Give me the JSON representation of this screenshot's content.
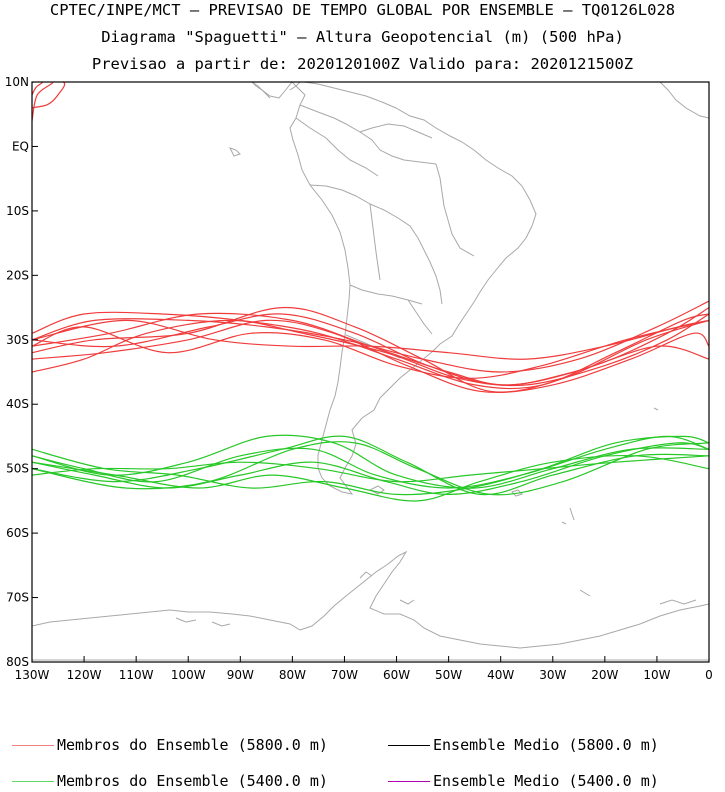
{
  "header": {
    "line1": "CPTEC/INPE/MCT — PREVISAO DE TEMPO GLOBAL POR ENSEMBLE — TQ0126L028",
    "line2": "Diagrama \"Spaguetti\" — Altura Geopotencial (m) (500 hPa)",
    "line3": "Previsao a partir de: 2020120100Z  Valido para: 2020121500Z"
  },
  "map": {
    "lat_range": [
      -80,
      10
    ],
    "lon_range": [
      -130,
      0
    ],
    "lat_ticks": [
      {
        "lat": 10,
        "label": "10N"
      },
      {
        "lat": 0,
        "label": "EQ"
      },
      {
        "lat": -10,
        "label": "10S"
      },
      {
        "lat": -20,
        "label": "20S"
      },
      {
        "lat": -30,
        "label": "30S"
      },
      {
        "lat": -40,
        "label": "40S"
      },
      {
        "lat": -50,
        "label": "50S"
      },
      {
        "lat": -60,
        "label": "60S"
      },
      {
        "lat": -70,
        "label": "70S"
      },
      {
        "lat": -80,
        "label": "80S"
      }
    ],
    "lon_ticks": [
      {
        "lon": -130,
        "label": "130W"
      },
      {
        "lon": -120,
        "label": "120W"
      },
      {
        "lon": -110,
        "label": "110W"
      },
      {
        "lon": -100,
        "label": "100W"
      },
      {
        "lon": -90,
        "label": "90W"
      },
      {
        "lon": -80,
        "label": "80W"
      },
      {
        "lon": -70,
        "label": "70W"
      },
      {
        "lon": -60,
        "label": "60W"
      },
      {
        "lon": -50,
        "label": "50W"
      },
      {
        "lon": -40,
        "label": "40W"
      },
      {
        "lon": -30,
        "label": "30W"
      },
      {
        "lon": -20,
        "label": "20W"
      },
      {
        "lon": -10,
        "label": "10W"
      },
      {
        "lon": 0,
        "label": "0"
      }
    ],
    "coast_color": "#a8a8a8",
    "contour_5800": {
      "color": "#f03c3c",
      "members": [
        [
          [
            -130,
            -30
          ],
          [
            -118,
            -27
          ],
          [
            -100,
            -27
          ],
          [
            -85,
            -28
          ],
          [
            -70,
            -30
          ],
          [
            -55,
            -33
          ],
          [
            -40,
            -35
          ],
          [
            -25,
            -33
          ],
          [
            -10,
            -28
          ],
          [
            0,
            -24
          ]
        ],
        [
          [
            -130,
            -31
          ],
          [
            -115,
            -29
          ],
          [
            -98,
            -26
          ],
          [
            -80,
            -27
          ],
          [
            -65,
            -31
          ],
          [
            -50,
            -35
          ],
          [
            -38,
            -37
          ],
          [
            -22,
            -34
          ],
          [
            -8,
            -29
          ],
          [
            0,
            -25
          ]
        ],
        [
          [
            -130,
            -29
          ],
          [
            -120,
            -26
          ],
          [
            -105,
            -26
          ],
          [
            -90,
            -27
          ],
          [
            -75,
            -29
          ],
          [
            -60,
            -33
          ],
          [
            -45,
            -37
          ],
          [
            -32,
            -37
          ],
          [
            -18,
            -32
          ],
          [
            -5,
            -27
          ],
          [
            0,
            -26
          ]
        ],
        [
          [
            -130,
            -32
          ],
          [
            -118,
            -30
          ],
          [
            -100,
            -29
          ],
          [
            -82,
            -25
          ],
          [
            -68,
            -28
          ],
          [
            -55,
            -33
          ],
          [
            -42,
            -38
          ],
          [
            -28,
            -36
          ],
          [
            -12,
            -30
          ],
          [
            0,
            -27
          ]
        ],
        [
          [
            -130,
            -30
          ],
          [
            -112,
            -27
          ],
          [
            -95,
            -30
          ],
          [
            -80,
            -31
          ],
          [
            -65,
            -31
          ],
          [
            -50,
            -32
          ],
          [
            -35,
            -33
          ],
          [
            -20,
            -31
          ],
          [
            -6,
            -28
          ],
          [
            0,
            -27
          ]
        ],
        [
          [
            -130,
            -33
          ],
          [
            -116,
            -32
          ],
          [
            -100,
            -30
          ],
          [
            -85,
            -27
          ],
          [
            -72,
            -29
          ],
          [
            -58,
            -34
          ],
          [
            -44,
            -38
          ],
          [
            -30,
            -37
          ],
          [
            -15,
            -33
          ],
          [
            -3,
            -29
          ],
          [
            0,
            -31
          ]
        ],
        [
          [
            -130,
            -31
          ],
          [
            -120,
            -28
          ],
          [
            -104,
            -32
          ],
          [
            -88,
            -29
          ],
          [
            -74,
            -30
          ],
          [
            -60,
            -34
          ],
          [
            -46,
            -36
          ],
          [
            -32,
            -34
          ],
          [
            -16,
            -30
          ],
          [
            0,
            -27
          ]
        ],
        [
          [
            -130,
            -30
          ],
          [
            -114,
            -31
          ],
          [
            -96,
            -28
          ],
          [
            -82,
            -26
          ],
          [
            -68,
            -29
          ],
          [
            -54,
            -34
          ],
          [
            -40,
            -37
          ],
          [
            -26,
            -35
          ],
          [
            -10,
            -31
          ],
          [
            0,
            -33
          ]
        ],
        [
          [
            -130,
            -35
          ],
          [
            -120,
            -33
          ],
          [
            -108,
            -29
          ],
          [
            -92,
            -27
          ],
          [
            -78,
            -29
          ],
          [
            -62,
            -32
          ],
          [
            -48,
            -36
          ],
          [
            -35,
            -37
          ],
          [
            -20,
            -34
          ],
          [
            -8,
            -30
          ],
          [
            0,
            -26
          ]
        ]
      ],
      "closed": [
        [
          [
            -130,
            4
          ],
          [
            -129,
            8
          ],
          [
            -126,
            10
          ],
          [
            -130,
            10
          ]
        ],
        [
          [
            -130,
            6
          ],
          [
            -127,
            6.5
          ],
          [
            -125,
            8
          ],
          [
            -124,
            10
          ],
          [
            -130,
            10
          ]
        ],
        [
          [
            -130,
            8
          ],
          [
            -129.2,
            9.2
          ],
          [
            -128,
            10
          ],
          [
            -130,
            10
          ]
        ]
      ]
    },
    "contour_5400": {
      "color": "#28c828",
      "members": [
        [
          [
            -130,
            -48
          ],
          [
            -115,
            -51
          ],
          [
            -100,
            -49
          ],
          [
            -85,
            -45
          ],
          [
            -72,
            -46
          ],
          [
            -60,
            -51
          ],
          [
            -45,
            -53
          ],
          [
            -30,
            -50
          ],
          [
            -15,
            -47
          ],
          [
            0,
            -47
          ]
        ],
        [
          [
            -130,
            -49
          ],
          [
            -118,
            -51
          ],
          [
            -104,
            -53
          ],
          [
            -90,
            -51
          ],
          [
            -76,
            -49
          ],
          [
            -62,
            -52
          ],
          [
            -50,
            -54
          ],
          [
            -36,
            -52
          ],
          [
            -20,
            -48
          ],
          [
            -6,
            -46
          ],
          [
            0,
            -47
          ]
        ],
        [
          [
            -130,
            -50
          ],
          [
            -114,
            -52
          ],
          [
            -98,
            -50
          ],
          [
            -82,
            -47
          ],
          [
            -70,
            -45
          ],
          [
            -58,
            -49
          ],
          [
            -44,
            -54
          ],
          [
            -30,
            -51
          ],
          [
            -14,
            -48
          ],
          [
            0,
            -48
          ]
        ],
        [
          [
            -130,
            -47
          ],
          [
            -116,
            -50
          ],
          [
            -102,
            -51
          ],
          [
            -88,
            -53
          ],
          [
            -74,
            -52
          ],
          [
            -60,
            -54
          ],
          [
            -46,
            -53
          ],
          [
            -32,
            -50
          ],
          [
            -18,
            -46
          ],
          [
            -5,
            -45
          ],
          [
            0,
            -46
          ]
        ],
        [
          [
            -130,
            -51
          ],
          [
            -118,
            -50
          ],
          [
            -104,
            -50
          ],
          [
            -90,
            -49
          ],
          [
            -75,
            -50
          ],
          [
            -60,
            -52
          ],
          [
            -46,
            -51
          ],
          [
            -32,
            -50
          ],
          [
            -18,
            -49
          ],
          [
            0,
            -48
          ]
        ],
        [
          [
            -130,
            -50
          ],
          [
            -112,
            -53
          ],
          [
            -96,
            -52
          ],
          [
            -80,
            -47
          ],
          [
            -68,
            -46
          ],
          [
            -56,
            -50
          ],
          [
            -42,
            -54
          ],
          [
            -28,
            -52
          ],
          [
            -12,
            -47
          ],
          [
            0,
            -46
          ]
        ],
        [
          [
            -130,
            -49
          ],
          [
            -114,
            -51
          ],
          [
            -98,
            -53
          ],
          [
            -84,
            -51
          ],
          [
            -70,
            -53
          ],
          [
            -56,
            -55
          ],
          [
            -44,
            -52
          ],
          [
            -30,
            -49
          ],
          [
            -14,
            -48
          ],
          [
            0,
            -50
          ]
        ],
        [
          [
            -130,
            -48
          ],
          [
            -120,
            -50
          ],
          [
            -106,
            -52
          ],
          [
            -90,
            -48
          ],
          [
            -76,
            -47
          ],
          [
            -64,
            -51
          ],
          [
            -50,
            -53
          ],
          [
            -36,
            -51
          ],
          [
            -20,
            -47
          ],
          [
            -8,
            -45
          ],
          [
            0,
            -47
          ]
        ]
      ]
    }
  },
  "legend": [
    {
      "label": "Membros do Ensemble (5800.0 m)",
      "color": "#f08080"
    },
    {
      "label": "Ensemble Medio (5800.0 m)",
      "color": "#000000"
    },
    {
      "label": "Membros do Ensemble (5400.0 m)",
      "color": "#60d860"
    },
    {
      "label": "Ensemble Medio (5400.0 m)",
      "color": "#b000b0"
    }
  ]
}
